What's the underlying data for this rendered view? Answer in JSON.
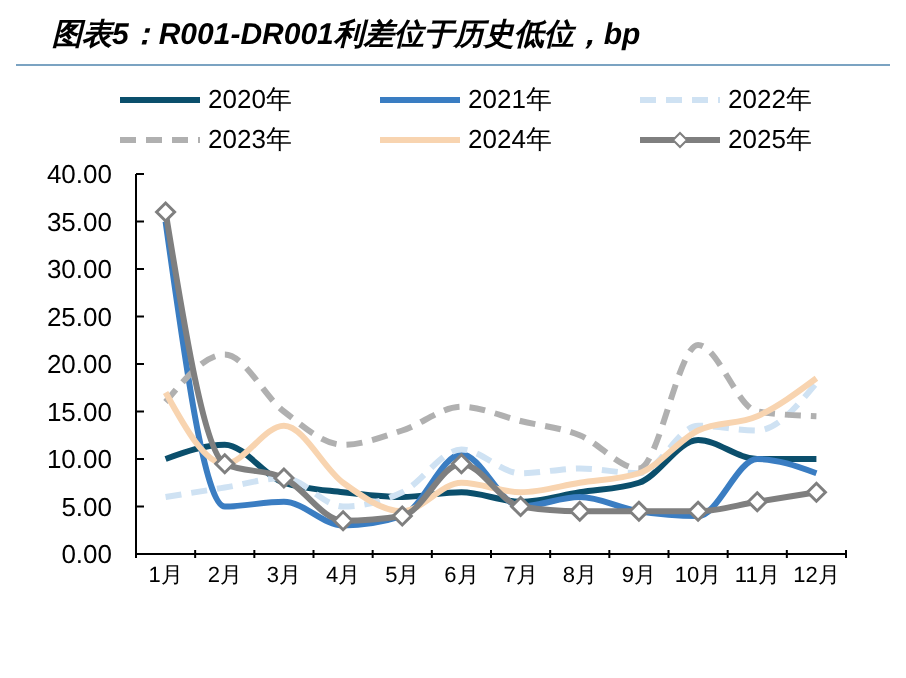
{
  "chart_data": {
    "type": "line",
    "title": "图表5：R001-DR001利差位于历史低位，bp",
    "categories": [
      "1月",
      "2月",
      "3月",
      "4月",
      "5月",
      "6月",
      "7月",
      "8月",
      "9月",
      "10月",
      "11月",
      "12月"
    ],
    "series": [
      {
        "name": "2020年",
        "color": "#0b4f6c",
        "values": [
          10,
          11.5,
          7.5,
          6.5,
          6,
          6.5,
          5.5,
          6.5,
          7.5,
          12,
          10,
          10
        ]
      },
      {
        "name": "2021年",
        "color": "#3a7dc2",
        "values": [
          35,
          5,
          5.5,
          3,
          4,
          10.5,
          5,
          6,
          4.5,
          4,
          10,
          8.5
        ]
      },
      {
        "name": "2022年",
        "color": "#cfe2f3",
        "line_style": "dashed",
        "values": [
          6,
          7,
          8,
          5,
          6.5,
          11,
          8.5,
          9,
          8.5,
          13.5,
          13,
          18
        ]
      },
      {
        "name": "2023年",
        "color": "#b0b0b0",
        "line_style": "dashed",
        "values": [
          16,
          21,
          15,
          11.5,
          13,
          15.5,
          14,
          12.5,
          9,
          22,
          15,
          14.5
        ]
      },
      {
        "name": "2024年",
        "color": "#f8d4b0",
        "values": [
          17,
          9.5,
          13.5,
          7.5,
          4.5,
          7.5,
          6.5,
          7.5,
          8.5,
          13,
          14.5,
          18.5
        ]
      },
      {
        "name": "2025年",
        "color": "#7f7f7f",
        "marker": "diamond",
        "values": [
          36,
          9.5,
          8,
          3.5,
          4,
          9.5,
          5,
          4.5,
          4.5,
          4.5,
          5.5,
          6.5
        ]
      }
    ],
    "ylim": [
      0,
      40
    ],
    "yticks": [
      {
        "value": 0,
        "label": "0.00"
      },
      {
        "value": 5,
        "label": "5.00"
      },
      {
        "value": 10,
        "label": "10.00"
      },
      {
        "value": 15,
        "label": "15.00"
      },
      {
        "value": 20,
        "label": "20.00"
      },
      {
        "value": 25,
        "label": "25.00"
      },
      {
        "value": 30,
        "label": "30.00"
      },
      {
        "value": 35,
        "label": "35.00"
      },
      {
        "value": 40,
        "label": "40.00"
      }
    ],
    "legend": "top",
    "marker": "none",
    "line_style": "solid",
    "grid": false
  }
}
